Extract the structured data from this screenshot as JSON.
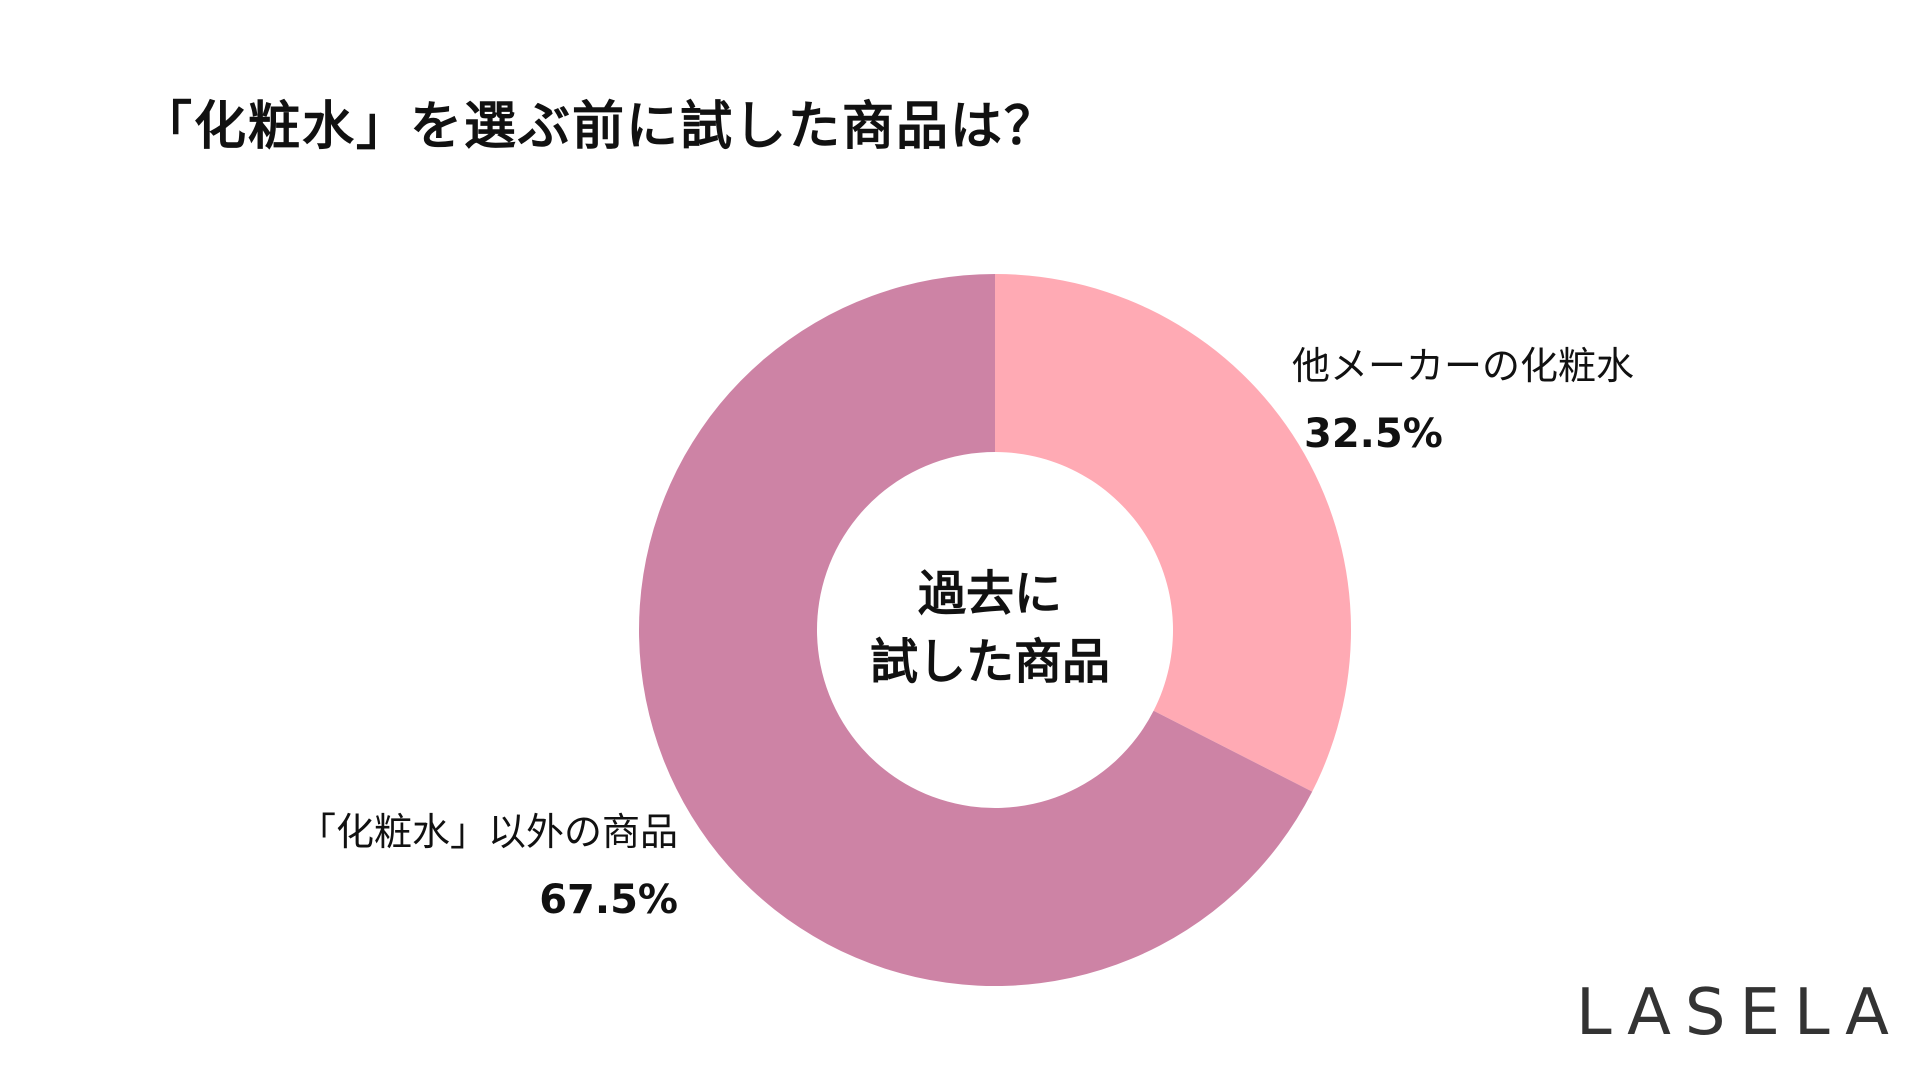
{
  "chart_data": {
    "type": "pie",
    "variant": "donut",
    "title": "「化粧水」を選ぶ前に試した商品は？",
    "center_label_lines": [
      "過去に",
      "試した商品"
    ],
    "slices": [
      {
        "label": "他メーカーの化粧水",
        "value": 32.5,
        "value_label": "32.5%",
        "color": "#FFAAB4"
      },
      {
        "label": "「化粧水」以外の商品",
        "value": 67.5,
        "value_label": "67.5%",
        "color": "#CD83A5"
      }
    ],
    "start_angle": "12 o'clock",
    "direction": "clockwise",
    "legend": "none"
  },
  "brand": {
    "logo_text": "LASELA"
  }
}
